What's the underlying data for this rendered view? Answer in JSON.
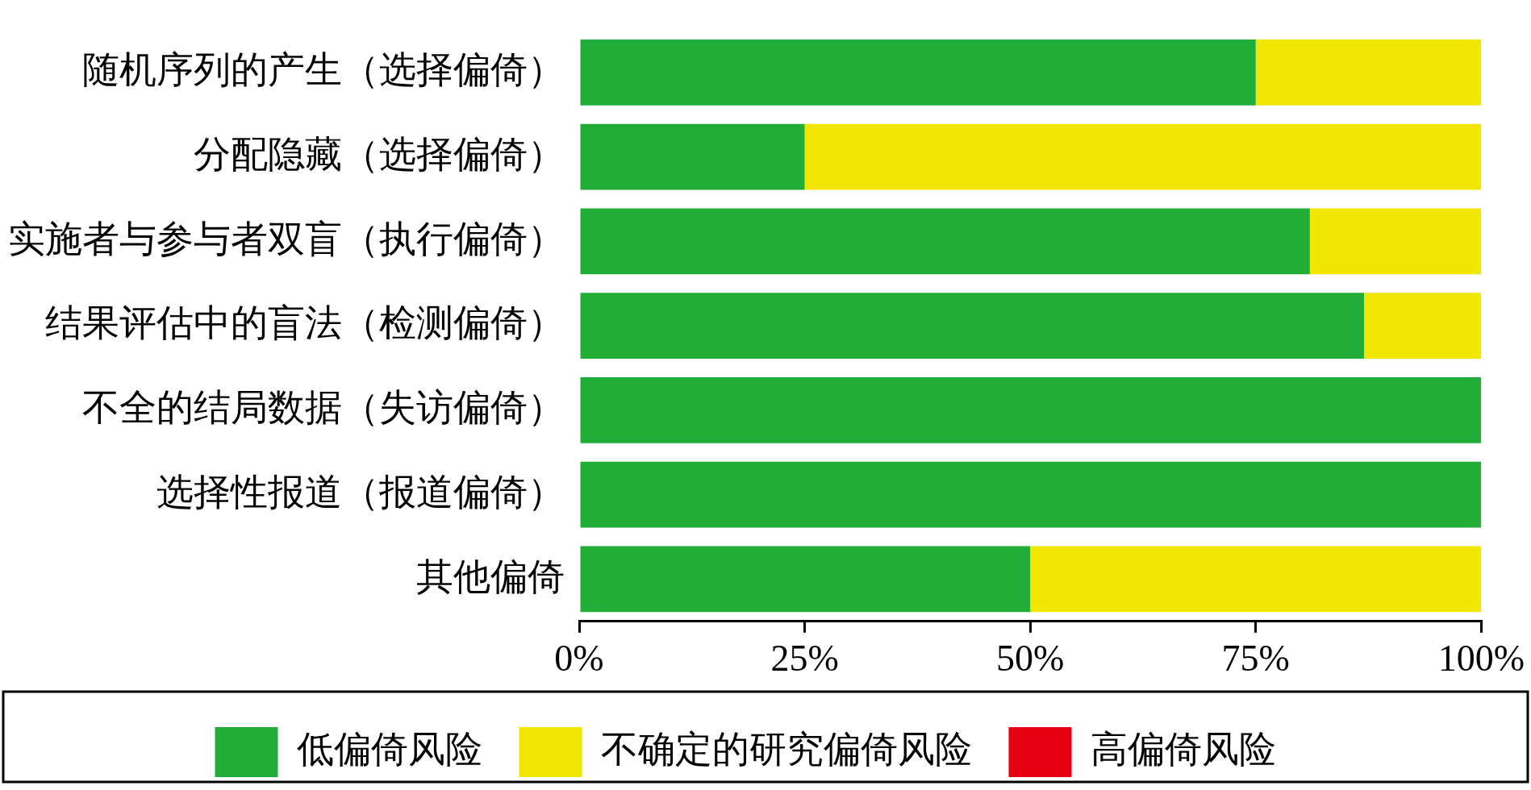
{
  "chart_data": {
    "type": "bar",
    "orientation": "horizontal",
    "stacked": true,
    "categories": [
      "随机序列的产生（选择偏倚）",
      "分配隐藏（选择偏倚）",
      "实施者与参与者双盲（执行偏倚）",
      "结果评估中的盲法（检测偏倚）",
      "不全的结局数据（失访偏倚）",
      "选择性报道（报道偏倚）",
      "其他偏倚"
    ],
    "series": [
      {
        "name": "低偏倚风险",
        "color": "#22ac38",
        "values": [
          75,
          25,
          81,
          87,
          100,
          100,
          50
        ]
      },
      {
        "name": "不确定的研究偏倚风险",
        "color": "#f0e600",
        "values": [
          25,
          75,
          19,
          13,
          0,
          0,
          50
        ]
      },
      {
        "name": "高偏倚风险",
        "color": "#e60012",
        "values": [
          0,
          0,
          0,
          0,
          0,
          0,
          0
        ]
      }
    ],
    "xlim": [
      0,
      100
    ],
    "xticks": [
      {
        "value": 0,
        "label": "0%"
      },
      {
        "value": 25,
        "label": "25%"
      },
      {
        "value": 50,
        "label": "50%"
      },
      {
        "value": 75,
        "label": "75%"
      },
      {
        "value": 100,
        "label": "100%"
      }
    ],
    "grid": false,
    "legend": "bottom"
  }
}
